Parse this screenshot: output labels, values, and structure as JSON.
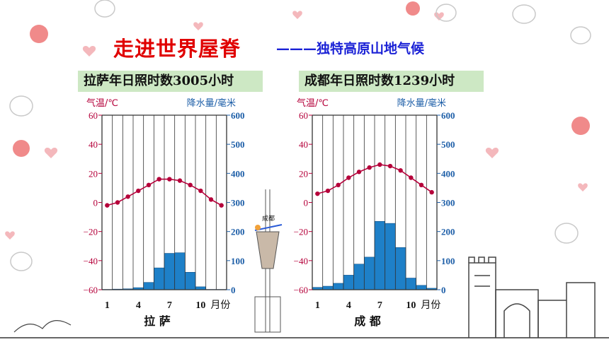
{
  "header": {
    "title": "走进世界屋脊",
    "subtitle": "———独特高原山地气候"
  },
  "mini_label": "成都",
  "chart_data": [
    {
      "type": "bar",
      "caption": "拉萨年日照时数3005小时",
      "location_label": "拉 萨",
      "xlabel": "月份",
      "left_axis_label": "气温/℃",
      "right_axis_label": "降水量/毫米",
      "x_tick_labels": [
        "1",
        "4",
        "7",
        "10"
      ],
      "x_tick_months": [
        1,
        4,
        7,
        10
      ],
      "left_ticks": [
        "60",
        "40",
        "20",
        "0",
        "−20",
        "−40",
        "−60"
      ],
      "right_ticks": [
        "600",
        "500",
        "400",
        "300",
        "200",
        "100",
        "0"
      ],
      "left_ylim": [
        -60,
        60
      ],
      "right_ylim": [
        0,
        600
      ],
      "categories": [
        1,
        2,
        3,
        4,
        5,
        6,
        7,
        8,
        9,
        10,
        11,
        12
      ],
      "series": [
        {
          "kind": "line",
          "axis": "left",
          "values": [
            -2,
            0,
            4,
            8,
            12,
            16,
            16,
            15,
            12,
            8,
            2,
            -2
          ]
        },
        {
          "kind": "bar",
          "axis": "right",
          "values": [
            1,
            2,
            3,
            7,
            25,
            75,
            125,
            127,
            60,
            10,
            1,
            1
          ]
        }
      ],
      "colors": {
        "line": "#b5003a",
        "bar": "#1e80c8",
        "grid": "#333333",
        "left_axis": "#b5003a",
        "right_axis": "#1e5fa8"
      }
    },
    {
      "type": "bar",
      "caption": "成都年日照时数1239小时",
      "location_label": "成 都",
      "xlabel": "月份",
      "left_axis_label": "气温/℃",
      "right_axis_label": "降水量/毫米",
      "x_tick_labels": [
        "1",
        "4",
        "7",
        "10"
      ],
      "x_tick_months": [
        1,
        4,
        7,
        10
      ],
      "left_ticks": [
        "60",
        "40",
        "20",
        "0",
        "−20",
        "−40",
        "−60"
      ],
      "right_ticks": [
        "600",
        "500",
        "400",
        "300",
        "200",
        "100",
        "0"
      ],
      "left_ylim": [
        -60,
        60
      ],
      "right_ylim": [
        0,
        600
      ],
      "categories": [
        1,
        2,
        3,
        4,
        5,
        6,
        7,
        8,
        9,
        10,
        11,
        12
      ],
      "series": [
        {
          "kind": "line",
          "axis": "left",
          "values": [
            6,
            8,
            12,
            17,
            21,
            24,
            26,
            25,
            22,
            17,
            12,
            7
          ]
        },
        {
          "kind": "bar",
          "axis": "right",
          "values": [
            8,
            12,
            22,
            50,
            88,
            112,
            235,
            228,
            145,
            40,
            15,
            5
          ]
        }
      ],
      "colors": {
        "line": "#b5003a",
        "bar": "#1e80c8",
        "grid": "#333333",
        "left_axis": "#b5003a",
        "right_axis": "#1e5fa8"
      }
    }
  ]
}
